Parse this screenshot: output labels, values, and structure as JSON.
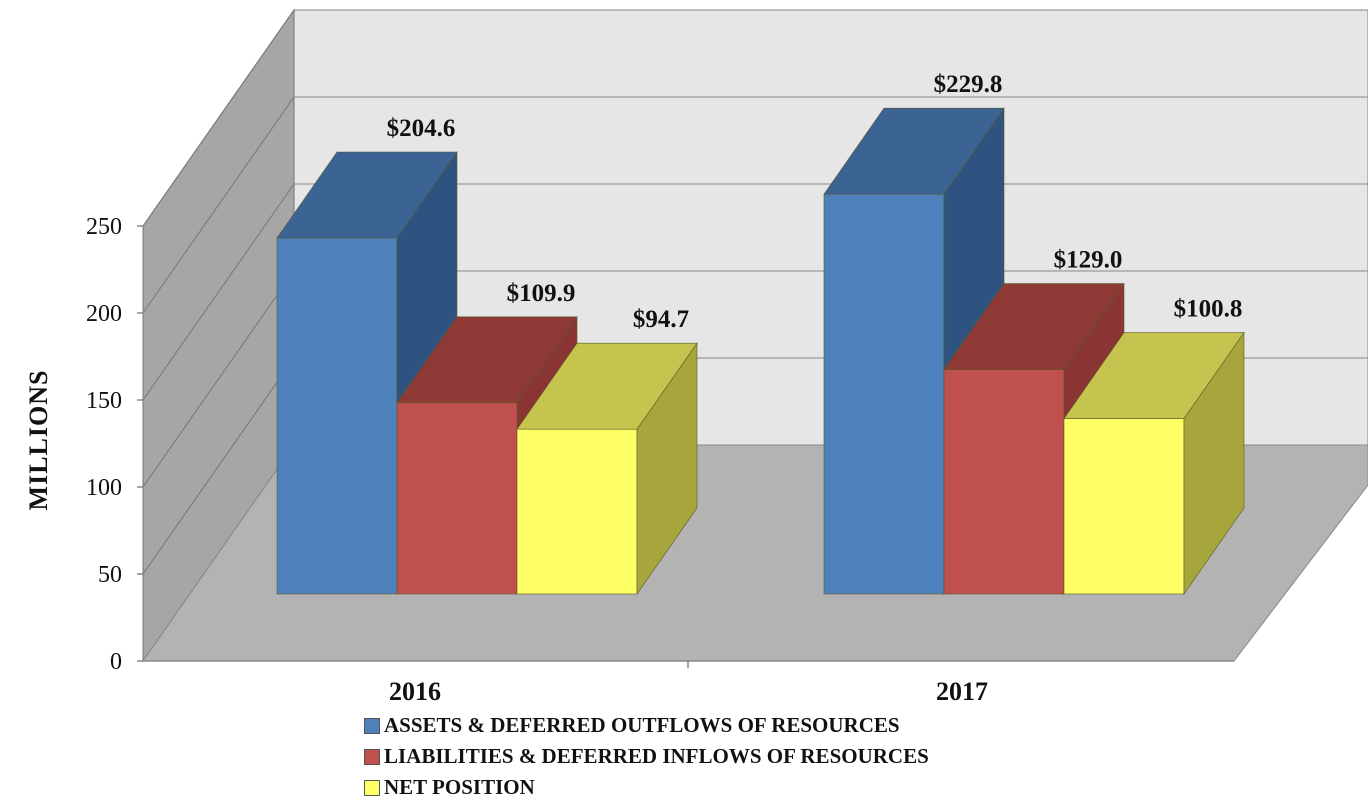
{
  "chart_data": {
    "type": "bar",
    "categories": [
      "2016",
      "2017"
    ],
    "series": [
      {
        "name": "ASSETS & DEFERRED OUTFLOWS OF RESOURCES",
        "values": [
          204.6,
          229.8
        ],
        "labels": [
          "$204.6",
          "$229.8"
        ],
        "color": "#4F81BD"
      },
      {
        "name": "LIABILITIES & DEFERRED INFLOWS OF RESOURCES",
        "values": [
          109.9,
          129.0
        ],
        "labels": [
          "$109.9",
          "$129.0"
        ],
        "color": "#C0504D"
      },
      {
        "name": "NET POSITION",
        "values": [
          94.7,
          100.8
        ],
        "labels": [
          "$94.7",
          "$100.8"
        ],
        "color": "#FFFF66"
      }
    ],
    "ylabel": "MILLIONS",
    "yticks": [
      "0",
      "50",
      "100",
      "150",
      "200",
      "250"
    ],
    "ylim": [
      0,
      250
    ],
    "grid": true,
    "legend": "bottom",
    "style": "3d-clustered"
  }
}
